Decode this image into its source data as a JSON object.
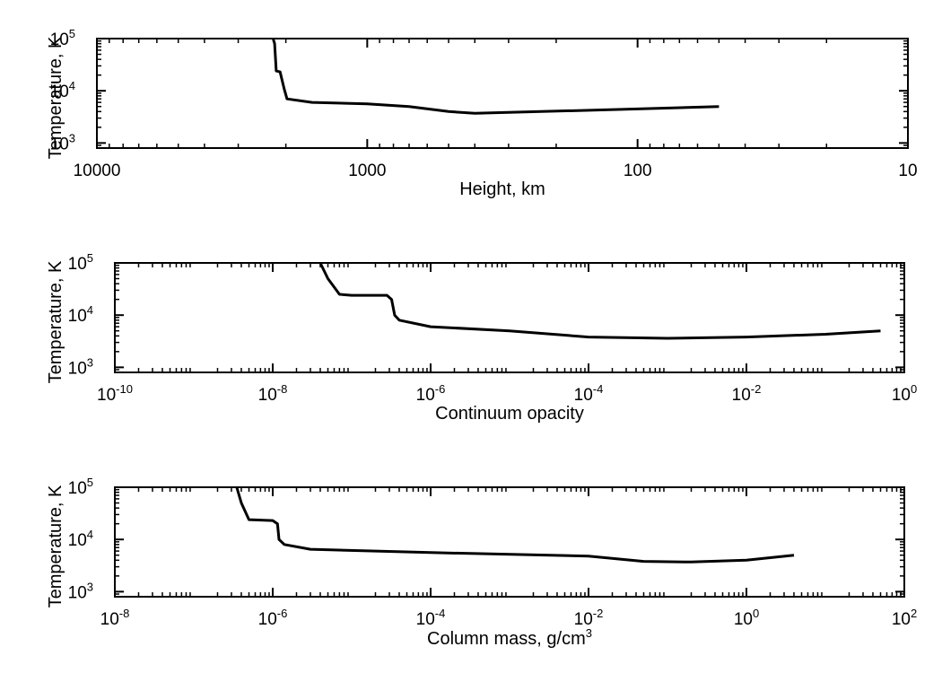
{
  "colors": {
    "background": "#ffffff",
    "ink": "#000000"
  },
  "chart_data": [
    {
      "type": "line",
      "title": "",
      "xlabel": "Height, km",
      "ylabel": "Temperature, K",
      "xscale": "log",
      "yscale": "log",
      "x_reversed": true,
      "xlim": [
        10000,
        10
      ],
      "ylim": [
        800,
        100000
      ],
      "grid": false,
      "x_ticks": [
        {
          "value": 10000,
          "label": "10000"
        },
        {
          "value": 1000,
          "label": "1000"
        },
        {
          "value": 100,
          "label": "100"
        },
        {
          "value": 10,
          "label": "10"
        }
      ],
      "y_ticks": [
        {
          "value": 1000,
          "base": "10",
          "exp": "3"
        },
        {
          "value": 10000,
          "base": "10",
          "exp": "4"
        },
        {
          "value": 100000,
          "base": "10",
          "exp": "5"
        }
      ],
      "series": [
        {
          "values": [
            [
              2230,
              100000
            ],
            [
              2200,
              80000
            ],
            [
              2170,
              24000
            ],
            [
              2100,
              23000
            ],
            [
              2030,
              11000
            ],
            [
              1980,
              7000
            ],
            [
              1600,
              6000
            ],
            [
              1000,
              5600
            ],
            [
              700,
              5000
            ],
            [
              500,
              4000
            ],
            [
              400,
              3700
            ],
            [
              100,
              4500
            ],
            [
              50,
              5000
            ]
          ]
        }
      ]
    },
    {
      "type": "line",
      "title": "",
      "xlabel": "Continuum opacity",
      "ylabel": "Temperature, K",
      "xscale": "log",
      "yscale": "log",
      "xlim": [
        1e-10,
        1
      ],
      "ylim": [
        800,
        100000
      ],
      "grid": false,
      "x_ticks": [
        {
          "value": 1e-10,
          "base": "10",
          "exp": "-10"
        },
        {
          "value": 1e-08,
          "base": "10",
          "exp": "-8"
        },
        {
          "value": 1e-06,
          "base": "10",
          "exp": "-6"
        },
        {
          "value": 0.0001,
          "base": "10",
          "exp": "-4"
        },
        {
          "value": 0.01,
          "base": "10",
          "exp": "-2"
        },
        {
          "value": 1,
          "base": "10",
          "exp": "0"
        }
      ],
      "y_ticks": [
        {
          "value": 1000,
          "base": "10",
          "exp": "3"
        },
        {
          "value": 10000,
          "base": "10",
          "exp": "4"
        },
        {
          "value": 100000,
          "base": "10",
          "exp": "5"
        }
      ],
      "series": [
        {
          "values": [
            [
              4e-08,
              100000
            ],
            [
              5e-08,
              50000
            ],
            [
              7e-08,
              25000
            ],
            [
              1e-07,
              24000
            ],
            [
              2.8e-07,
              24000
            ],
            [
              3.2e-07,
              20000
            ],
            [
              3.5e-07,
              10000
            ],
            [
              4e-07,
              8000
            ],
            [
              1e-06,
              6000
            ],
            [
              1e-05,
              5000
            ],
            [
              0.0001,
              3800
            ],
            [
              0.001,
              3600
            ],
            [
              0.01,
              3800
            ],
            [
              0.1,
              4300
            ],
            [
              0.5,
              5000
            ]
          ]
        }
      ]
    },
    {
      "type": "line",
      "title": "",
      "xlabel": "Column mass, g/cm",
      "xlabel_exp": "3",
      "ylabel": "Temperature, K",
      "xscale": "log",
      "yscale": "log",
      "xlim": [
        1e-08,
        100
      ],
      "ylim": [
        800,
        100000
      ],
      "grid": false,
      "x_ticks": [
        {
          "value": 1e-08,
          "base": "10",
          "exp": "-8"
        },
        {
          "value": 1e-06,
          "base": "10",
          "exp": "-6"
        },
        {
          "value": 0.0001,
          "base": "10",
          "exp": "-4"
        },
        {
          "value": 0.01,
          "base": "10",
          "exp": "-2"
        },
        {
          "value": 1,
          "base": "10",
          "exp": "0"
        },
        {
          "value": 100,
          "base": "10",
          "exp": "2"
        }
      ],
      "y_ticks": [
        {
          "value": 1000,
          "base": "10",
          "exp": "3"
        },
        {
          "value": 10000,
          "base": "10",
          "exp": "4"
        },
        {
          "value": 100000,
          "base": "10",
          "exp": "5"
        }
      ],
      "series": [
        {
          "values": [
            [
              3.5e-07,
              100000
            ],
            [
              4e-07,
              50000
            ],
            [
              5e-07,
              24000
            ],
            [
              1e-06,
              23000
            ],
            [
              1.15e-06,
              20000
            ],
            [
              1.2e-06,
              10000
            ],
            [
              1.4e-06,
              8000
            ],
            [
              3e-06,
              6500
            ],
            [
              0.0001,
              5600
            ],
            [
              0.01,
              4800
            ],
            [
              0.05,
              3800
            ],
            [
              0.2,
              3700
            ],
            [
              1,
              4000
            ],
            [
              4,
              5000
            ]
          ]
        }
      ]
    }
  ]
}
